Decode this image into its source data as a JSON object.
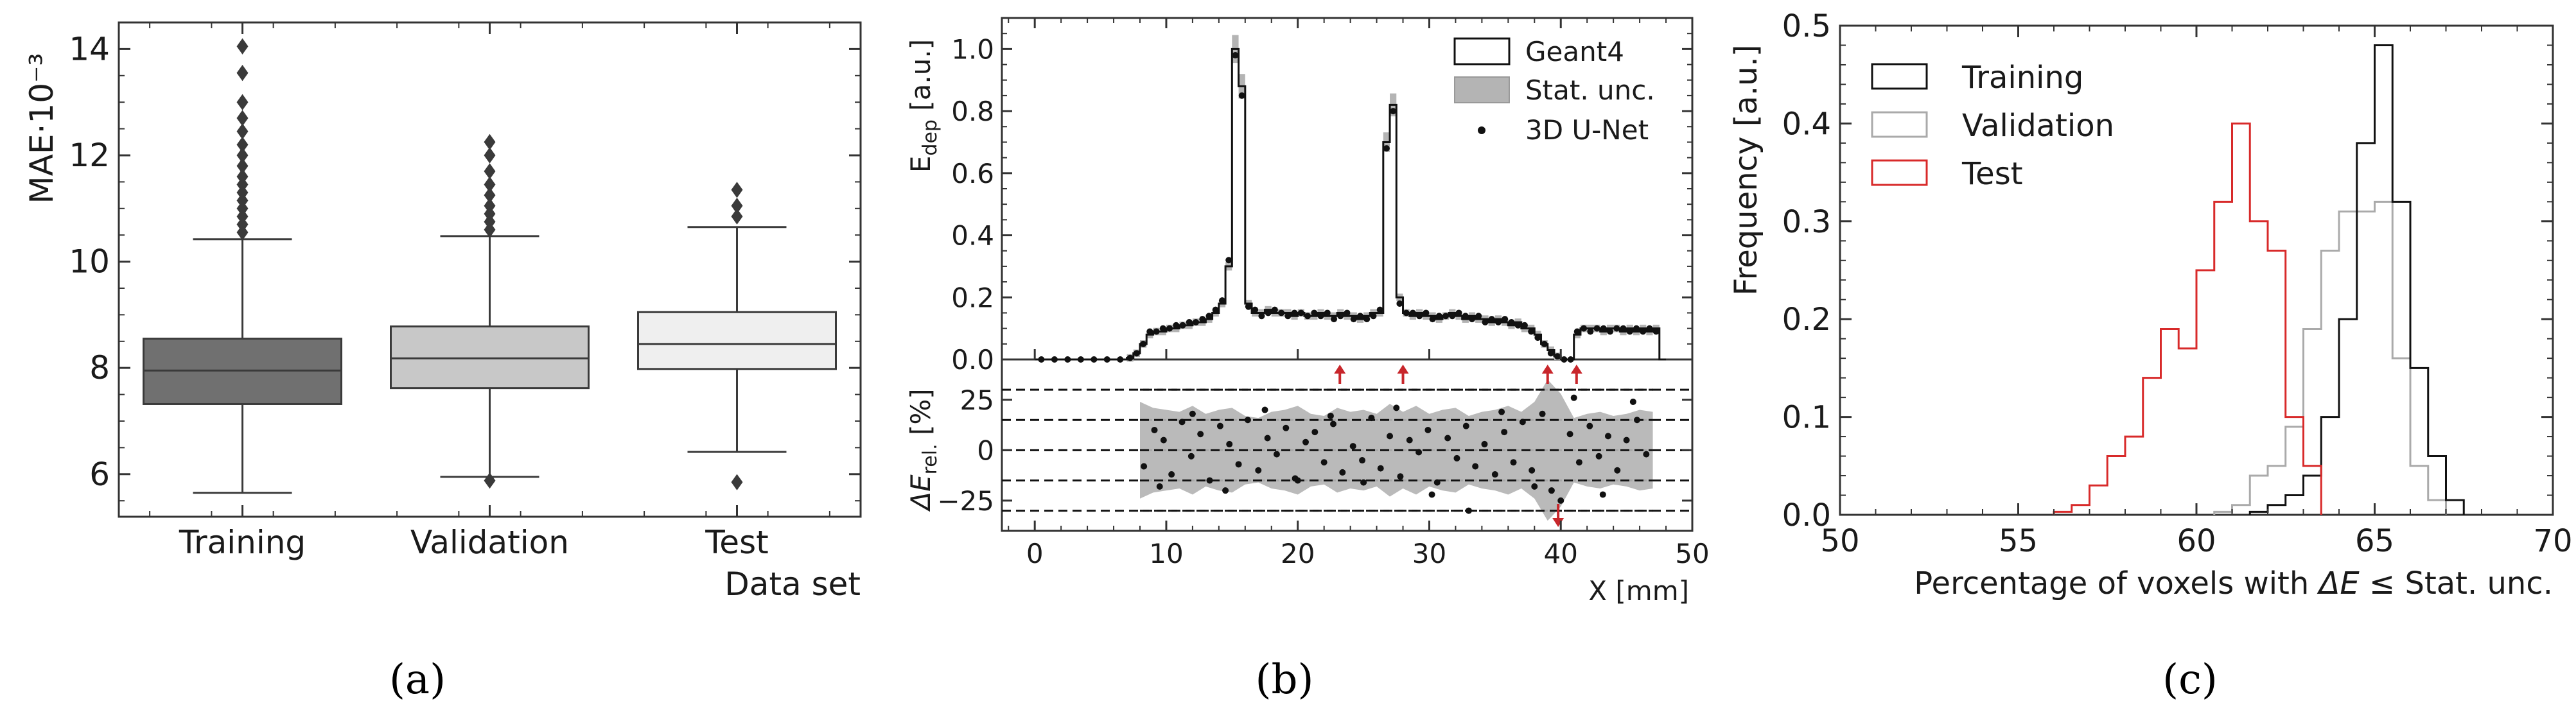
{
  "chart_data": [
    {
      "panel": "(a)",
      "type": "box",
      "ylabel": "MAE·10⁻³",
      "xlabel": "Data set",
      "ylim": [
        5.2,
        14.5
      ],
      "yticks": [
        6,
        8,
        10,
        12,
        14
      ],
      "categories": [
        "Training",
        "Validation",
        "Test"
      ],
      "colors": [
        "#707070",
        "#c8c8c8",
        "#efefef"
      ],
      "boxes": [
        {
          "name": "Training",
          "whisker_low": 5.65,
          "q1": 7.32,
          "median": 7.95,
          "q3": 8.55,
          "whisker_high": 10.42,
          "outliers": [
            10.55,
            10.7,
            10.85,
            11.0,
            11.15,
            11.3,
            11.45,
            11.6,
            11.8,
            12.0,
            12.2,
            12.45,
            12.7,
            13.0,
            13.55,
            14.05
          ]
        },
        {
          "name": "Validation",
          "whisker_low": 5.95,
          "q1": 7.62,
          "median": 8.18,
          "q3": 8.78,
          "whisker_high": 10.48,
          "outliers": [
            5.88,
            10.6,
            10.75,
            10.9,
            11.05,
            11.25,
            11.45,
            11.7,
            12.0,
            12.25
          ]
        },
        {
          "name": "Test",
          "whisker_low": 6.42,
          "q1": 7.98,
          "median": 8.45,
          "q3": 9.05,
          "whisker_high": 10.65,
          "outliers": [
            5.85,
            10.85,
            11.05,
            11.35
          ]
        }
      ]
    },
    {
      "panel": "(b)",
      "type": "line",
      "top": {
        "ylabel": "E_dep [a.u.]",
        "ylabel_main": "E",
        "ylabel_sub": "dep",
        "ylabel_rest": " [a.u.]",
        "ylim": [
          0.0,
          1.1
        ],
        "yticks": [
          0.0,
          0.2,
          0.4,
          0.6,
          0.8,
          1.0
        ],
        "legend": [
          "Geant4",
          "Stat. unc.",
          "3D U-Net"
        ],
        "x": [
          0,
          1,
          2,
          3,
          4,
          5,
          6,
          7,
          7.5,
          8,
          8.5,
          9,
          9.5,
          10,
          10.5,
          11,
          11.5,
          12,
          12.5,
          13,
          13.5,
          14,
          14.5,
          15,
          15.5,
          16,
          16.5,
          17,
          17.5,
          18,
          18.5,
          19,
          19.5,
          20,
          20.5,
          21,
          21.5,
          22,
          22.5,
          23,
          23.5,
          24,
          24.5,
          25,
          25.5,
          26,
          26.5,
          27,
          27.5,
          28,
          28.5,
          29,
          29.5,
          30,
          30.5,
          31,
          31.5,
          32,
          32.5,
          33,
          33.5,
          34,
          34.5,
          35,
          35.5,
          36,
          36.5,
          37,
          37.5,
          38,
          38.5,
          39,
          39.5,
          40,
          40.5,
          41,
          41.5,
          42,
          42.5,
          43,
          43.5,
          44,
          44.5,
          45,
          45.5,
          46,
          46.5,
          47,
          47.5
        ],
        "geant4": [
          0,
          0,
          0,
          0,
          0,
          0,
          0,
          0.005,
          0.02,
          0.05,
          0.08,
          0.09,
          0.09,
          0.1,
          0.1,
          0.11,
          0.11,
          0.12,
          0.12,
          0.13,
          0.15,
          0.18,
          0.3,
          1.0,
          0.88,
          0.18,
          0.15,
          0.15,
          0.16,
          0.15,
          0.15,
          0.15,
          0.14,
          0.15,
          0.14,
          0.14,
          0.15,
          0.14,
          0.14,
          0.15,
          0.14,
          0.14,
          0.13,
          0.14,
          0.15,
          0.15,
          0.7,
          0.82,
          0.2,
          0.15,
          0.14,
          0.15,
          0.14,
          0.14,
          0.13,
          0.14,
          0.15,
          0.14,
          0.13,
          0.14,
          0.13,
          0.13,
          0.12,
          0.13,
          0.12,
          0.11,
          0.12,
          0.1,
          0.1,
          0.08,
          0.05,
          0.03,
          0.01,
          0.0,
          0.0,
          0.08,
          0.1,
          0.1,
          0.1,
          0.09,
          0.1,
          0.1,
          0.09,
          0.1,
          0.09,
          0.1,
          0.09,
          0.1,
          0.0
        ],
        "unet": [
          0,
          0,
          0,
          0,
          0,
          0,
          0,
          0.005,
          0.02,
          0.05,
          0.09,
          0.09,
          0.1,
          0.1,
          0.11,
          0.11,
          0.12,
          0.12,
          0.13,
          0.14,
          0.16,
          0.19,
          0.32,
          0.98,
          0.85,
          0.17,
          0.16,
          0.14,
          0.15,
          0.16,
          0.15,
          0.14,
          0.15,
          0.15,
          0.14,
          0.15,
          0.14,
          0.15,
          0.13,
          0.14,
          0.15,
          0.13,
          0.14,
          0.13,
          0.14,
          0.16,
          0.68,
          0.8,
          0.18,
          0.15,
          0.15,
          0.14,
          0.15,
          0.13,
          0.14,
          0.14,
          0.14,
          0.15,
          0.14,
          0.13,
          0.14,
          0.12,
          0.13,
          0.12,
          0.13,
          0.12,
          0.11,
          0.11,
          0.09,
          0.07,
          0.05,
          0.02,
          0.01,
          0.0,
          0.0,
          0.09,
          0.1,
          0.09,
          0.1,
          0.1,
          0.09,
          0.1,
          0.1,
          0.09,
          0.1,
          0.09,
          0.1,
          0.09,
          0.0
        ]
      },
      "bottom": {
        "ylabel": "ΔE_rel. [%]",
        "ylabel_main": "ΔE",
        "ylabel_sub": "rel.",
        "ylabel_rest": " [%]",
        "ylim": [
          -40,
          45
        ],
        "yticks": [
          -25,
          0,
          25
        ],
        "dashed_lines": [
          -30,
          -15,
          0,
          15,
          30
        ],
        "xlabel": "X [mm]",
        "xlim": [
          -2.5,
          50
        ],
        "xticks": [
          0,
          10,
          20,
          30,
          40,
          50
        ],
        "unc_x": [
          8,
          9,
          10,
          11,
          12,
          13,
          14,
          15,
          16,
          17,
          18,
          19,
          20,
          21,
          22,
          23,
          24,
          25,
          26,
          27,
          28,
          29,
          30,
          31,
          32,
          33,
          34,
          35,
          36,
          37,
          38,
          39,
          40,
          41,
          42,
          43,
          44,
          45,
          46,
          47
        ],
        "unc_upper": [
          24,
          21,
          20,
          19,
          22,
          18,
          20,
          21,
          17,
          16,
          19,
          20,
          22,
          18,
          17,
          21,
          19,
          20,
          18,
          23,
          19,
          22,
          18,
          20,
          21,
          17,
          19,
          20,
          22,
          19,
          24,
          35,
          28,
          16,
          18,
          19,
          17,
          18,
          20,
          19
        ],
        "unc_lower": [
          -24,
          -21,
          -20,
          -19,
          -22,
          -18,
          -20,
          -21,
          -17,
          -16,
          -19,
          -20,
          -22,
          -18,
          -17,
          -21,
          -19,
          -20,
          -18,
          -23,
          -19,
          -22,
          -18,
          -20,
          -21,
          -17,
          -19,
          -20,
          -22,
          -19,
          -24,
          -35,
          -28,
          -16,
          -18,
          -19,
          -17,
          -18,
          -20,
          -19
        ],
        "points_x": [
          8.3,
          9.1,
          9.8,
          10.4,
          11.2,
          11.9,
          12.6,
          13.3,
          14.1,
          14.8,
          15.5,
          16.2,
          17,
          17.7,
          18.4,
          19.1,
          19.8,
          20.6,
          21.3,
          22,
          22.7,
          23.4,
          24.2,
          24.9,
          25.6,
          26.3,
          27,
          27.8,
          28.5,
          29.2,
          29.9,
          30.6,
          31.4,
          32.1,
          32.8,
          33.5,
          34.2,
          35,
          35.7,
          36.4,
          37.1,
          37.8,
          38.6,
          39.3,
          40,
          40.7,
          41.4,
          42.2,
          42.9,
          43.6,
          44.3,
          45,
          45.8,
          46.5,
          9.5,
          12,
          14.5,
          17.5,
          20,
          22.5,
          25,
          27.5,
          30.2,
          33,
          35.5,
          38,
          41,
          43.2,
          45.5
        ],
        "points_y": [
          -8,
          10,
          5,
          -12,
          14,
          -3,
          8,
          -15,
          12,
          3,
          -7,
          15,
          -10,
          6,
          -2,
          11,
          -14,
          4,
          9,
          -6,
          13,
          -11,
          2,
          -5,
          16,
          -9,
          7,
          -13,
          5,
          -1,
          10,
          -16,
          6,
          -4,
          12,
          -8,
          3,
          -12,
          9,
          -6,
          14,
          -10,
          18,
          -20,
          -25,
          8,
          -6,
          12,
          -3,
          7,
          -10,
          5,
          15,
          -2,
          -18,
          18,
          -20,
          20,
          -15,
          17,
          -16,
          21,
          -22,
          -30,
          19,
          -18,
          26,
          -22,
          24
        ],
        "arrows_up_x": [
          23.2,
          28.0,
          39.0,
          41.2
        ],
        "arrows_down_x": [
          39.8
        ]
      }
    },
    {
      "panel": "(c)",
      "type": "histogram",
      "xlabel": "Percentage of voxels with ΔE ≤ Stat. unc.",
      "xlabel_prefix": "Percentage of voxels with ",
      "xlabel_delta": "ΔE",
      "xlabel_suffix": " ≤ Stat. unc.",
      "ylabel": "Frequency [a.u.]",
      "xlim": [
        50,
        70
      ],
      "ylim": [
        0,
        0.5
      ],
      "xticks": [
        50,
        55,
        60,
        65,
        70
      ],
      "yticks": [
        0.0,
        0.1,
        0.2,
        0.3,
        0.4,
        0.5
      ],
      "bin_width": 0.5,
      "series": [
        {
          "name": "Training",
          "color": "#111111",
          "bin_edges": [
            61.5,
            62,
            62.5,
            63,
            63.5,
            64,
            64.5,
            65,
            65.5,
            66,
            66.5,
            67,
            67.5
          ],
          "values": [
            0.003,
            0.01,
            0.02,
            0.04,
            0.1,
            0.2,
            0.38,
            0.48,
            0.32,
            0.15,
            0.06,
            0.015
          ]
        },
        {
          "name": "Validation",
          "color": "#aaaaaa",
          "bin_edges": [
            60.5,
            61,
            61.5,
            62,
            62.5,
            63,
            63.5,
            64,
            64.5,
            65,
            65.5,
            66,
            66.5,
            67
          ],
          "values": [
            0.003,
            0.01,
            0.04,
            0.05,
            0.09,
            0.19,
            0.27,
            0.31,
            0.31,
            0.32,
            0.16,
            0.05,
            0.015
          ]
        },
        {
          "name": "Test",
          "color": "#d82a2a",
          "bin_edges": [
            56,
            56.5,
            57,
            57.5,
            58,
            58.5,
            59,
            59.5,
            60,
            60.5,
            61,
            61.5,
            62,
            62.5,
            63,
            63.5
          ],
          "values": [
            0.003,
            0.01,
            0.03,
            0.06,
            0.08,
            0.14,
            0.19,
            0.17,
            0.25,
            0.32,
            0.4,
            0.3,
            0.27,
            0.1,
            0.05
          ]
        }
      ]
    }
  ],
  "captions": [
    "(a)",
    "(b)",
    "(c)"
  ]
}
